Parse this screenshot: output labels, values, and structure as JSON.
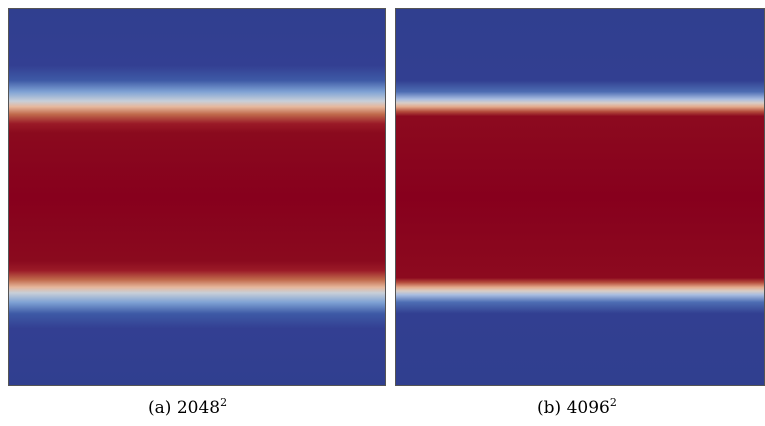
{
  "panels": [
    {
      "tag": "(a)",
      "base": "2048",
      "exponent": "2"
    },
    {
      "tag": "(b)",
      "base": "4096",
      "exponent": "2"
    }
  ],
  "colors": {
    "low": "#303f8f",
    "transition_light": "#c8cfd8",
    "high": "#87001d"
  }
}
